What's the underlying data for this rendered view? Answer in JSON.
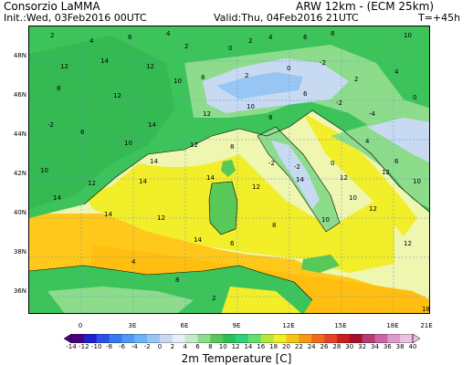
{
  "header": {
    "org": "Consorzio LaMMA",
    "model": "ARW 12km - (ECM 25km)",
    "init": "Init.:Wed, 03Feb2016 00UTC",
    "valid": "Valid:Thu, 04Feb2016 21UTC",
    "lead": "T=+45h"
  },
  "lat_labels": [
    "48N",
    "46N",
    "44N",
    "42N",
    "40N",
    "38N",
    "36N"
  ],
  "lon_labels": [
    "0",
    "3E",
    "6E",
    "9E",
    "12E",
    "15E",
    "18E",
    "21E"
  ],
  "map_values": [
    "2",
    "4",
    "6",
    "4",
    "2",
    "0",
    "2",
    "4",
    "6",
    "8",
    "10",
    "12",
    "14",
    "12",
    "10",
    "8",
    "2",
    "0",
    "-2",
    "2",
    "4",
    "8",
    "12",
    "14",
    "12",
    "10",
    "8",
    "6",
    "-2",
    "-4",
    "0",
    "-2",
    "6",
    "10",
    "14",
    "12",
    "8",
    "-2",
    "-2",
    "0",
    "4",
    "6",
    "10",
    "12",
    "14",
    "14",
    "12",
    "14",
    "12",
    "12",
    "10",
    "14",
    "14",
    "12",
    "14",
    "6",
    "8",
    "10",
    "10",
    "12",
    "12",
    "4",
    "8",
    "2",
    "18"
  ],
  "legend": {
    "values": [
      "-14",
      "-12",
      "-10",
      "-8",
      "-6",
      "-4",
      "-2",
      "0",
      "2",
      "4",
      "6",
      "8",
      "10",
      "12",
      "14",
      "16",
      "18",
      "20",
      "22",
      "24",
      "26",
      "28",
      "30",
      "32",
      "34",
      "36",
      "38",
      "40"
    ],
    "colors": [
      "#4b0082",
      "#1e1ecc",
      "#2a50e6",
      "#3a78f0",
      "#4f98f5",
      "#6fb2f7",
      "#98c6f4",
      "#c8daf2",
      "#e8eef5",
      "#c3ebc8",
      "#8cdc8c",
      "#58c858",
      "#2ebf56",
      "#2fd37b",
      "#66e06a",
      "#b4e83c",
      "#f0ee2a",
      "#f6c417",
      "#f49918",
      "#ef6a1d",
      "#e5422a",
      "#c91f1f",
      "#a8102a",
      "#b43c73",
      "#cc64a6",
      "#df99cc",
      "#ecc1e1"
    ],
    "title": "2m Temperature [C]"
  }
}
